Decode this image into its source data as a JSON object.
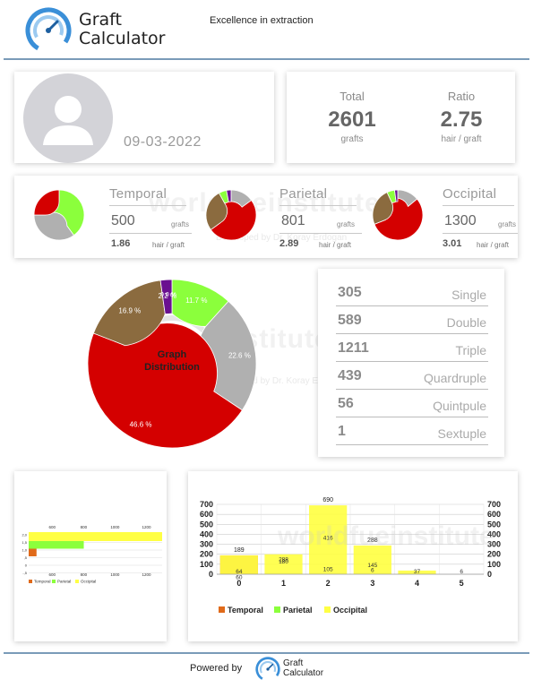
{
  "header": {
    "logo_line1": "Graft",
    "logo_line2": "Calculator",
    "tagline": "Excellence in extraction"
  },
  "profile": {
    "date": "09-03-2022"
  },
  "totals": {
    "total_label": "Total",
    "total_value": "2601",
    "total_unit": "grafts",
    "ratio_label": "Ratio",
    "ratio_value": "2.75",
    "ratio_unit": "hair / graft"
  },
  "regions": [
    {
      "name": "Temporal",
      "count": "500",
      "count_unit": "grafts",
      "ratio": "1.86",
      "ratio_unit": "hair / graft",
      "slices": [
        {
          "color": "#8bff3c",
          "value": 0.4
        },
        {
          "color": "#b0b0b0",
          "value": 0.35
        },
        {
          "color": "#d40000",
          "value": 0.25
        }
      ]
    },
    {
      "name": "Parietal",
      "count": "801",
      "count_unit": "grafts",
      "ratio": "2.89",
      "ratio_unit": "hair / graft",
      "slices": [
        {
          "color": "#b0b0b0",
          "value": 0.15
        },
        {
          "color": "#d40000",
          "value": 0.5
        },
        {
          "color": "#8b6b3f",
          "value": 0.27
        },
        {
          "color": "#8bff3c",
          "value": 0.05
        },
        {
          "color": "#6a1090",
          "value": 0.03
        }
      ]
    },
    {
      "name": "Occipital",
      "count": "1300",
      "count_unit": "grafts",
      "ratio": "3.01",
      "ratio_unit": "hair / graft",
      "slices": [
        {
          "color": "#b0b0b0",
          "value": 0.14
        },
        {
          "color": "#d40000",
          "value": 0.55
        },
        {
          "color": "#8b6b3f",
          "value": 0.24
        },
        {
          "color": "#8bff3c",
          "value": 0.05
        },
        {
          "color": "#6a1090",
          "value": 0.02
        }
      ]
    }
  ],
  "watermark": {
    "text": "worldfueinstitute",
    "sub": "Developed by Dr. Koray Erdogan"
  },
  "distribution": {
    "center_line1": "Graph",
    "center_line2": "Distribution",
    "slices": [
      {
        "label": "11.7 %",
        "value": 11.7,
        "color": "#8bff3c"
      },
      {
        "label": "22.6 %",
        "value": 22.6,
        "color": "#b0b0b0"
      },
      {
        "label": "46.6 %",
        "value": 46.6,
        "color": "#d40000"
      },
      {
        "label": "16.9 %",
        "value": 16.9,
        "color": "#8b6b3f"
      },
      {
        "label": "2.2 %",
        "value": 2.2,
        "color": "#6a1090"
      }
    ],
    "small_label": "0.0 %"
  },
  "types": [
    {
      "count": "305",
      "name": "Single"
    },
    {
      "count": "589",
      "name": "Double"
    },
    {
      "count": "1211",
      "name": "Triple"
    },
    {
      "count": "439",
      "name": "Quardruple"
    },
    {
      "count": "56",
      "name": "Quintpule"
    },
    {
      "count": "1",
      "name": "Sextuple"
    }
  ],
  "chart_data": [
    {
      "type": "bar",
      "orientation": "horizontal",
      "categories": [
        "2,0",
        "1,5",
        "1,0",
        ",5",
        "0",
        "-,5"
      ],
      "x_ticks_top": [
        "600",
        "800",
        "1000",
        "1200"
      ],
      "x_ticks_bottom": [
        "600",
        "800",
        "1000",
        "1200"
      ],
      "series": [
        {
          "name": "Temporal",
          "color": "#e06a1a",
          "bars": [
            {
              "y": 0,
              "value": 500
            }
          ]
        },
        {
          "name": "Parietal",
          "color": "#8bff3c",
          "bars": [
            {
              "y": 1,
              "value": 801
            }
          ]
        },
        {
          "name": "Occipital",
          "color": "#ffff44",
          "bars": [
            {
              "y": 2,
              "value": 1300
            }
          ]
        }
      ],
      "legend": [
        "Temporal",
        "Parietal",
        "Occipital"
      ]
    },
    {
      "type": "bar",
      "stacked": true,
      "categories": [
        "0",
        "1",
        "2",
        "3",
        "4",
        "5"
      ],
      "yticks": [
        "700",
        "600",
        "500",
        "400",
        "300",
        "200",
        "100",
        "0"
      ],
      "ylim": [
        0,
        700
      ],
      "series": [
        {
          "name": "Temporal",
          "color": "#e06a1a",
          "values": [
            189,
            0,
            0,
            0,
            0,
            0
          ]
        },
        {
          "name": "Parietal",
          "color": "#8bff3c",
          "values": [
            0,
            0,
            0,
            0,
            0,
            0
          ]
        },
        {
          "name": "Occipital",
          "color": "#ffff44",
          "values": [
            189,
            200,
            690,
            288,
            37,
            0
          ]
        }
      ],
      "top_labels": [
        "189",
        "",
        "690",
        "288",
        "",
        ""
      ],
      "inner_labels": [
        [
          "64",
          "60"
        ],
        [
          "288",
          "180"
        ],
        [
          "416",
          "105"
        ],
        [
          "145",
          "6"
        ],
        [
          "37"
        ],
        [
          "6"
        ]
      ],
      "legend": [
        "Temporal",
        "Parietal",
        "Occipital"
      ]
    }
  ],
  "footer": {
    "powered_by": "Powered by",
    "logo_line1": "Graft",
    "logo_line2": "Calculator"
  }
}
